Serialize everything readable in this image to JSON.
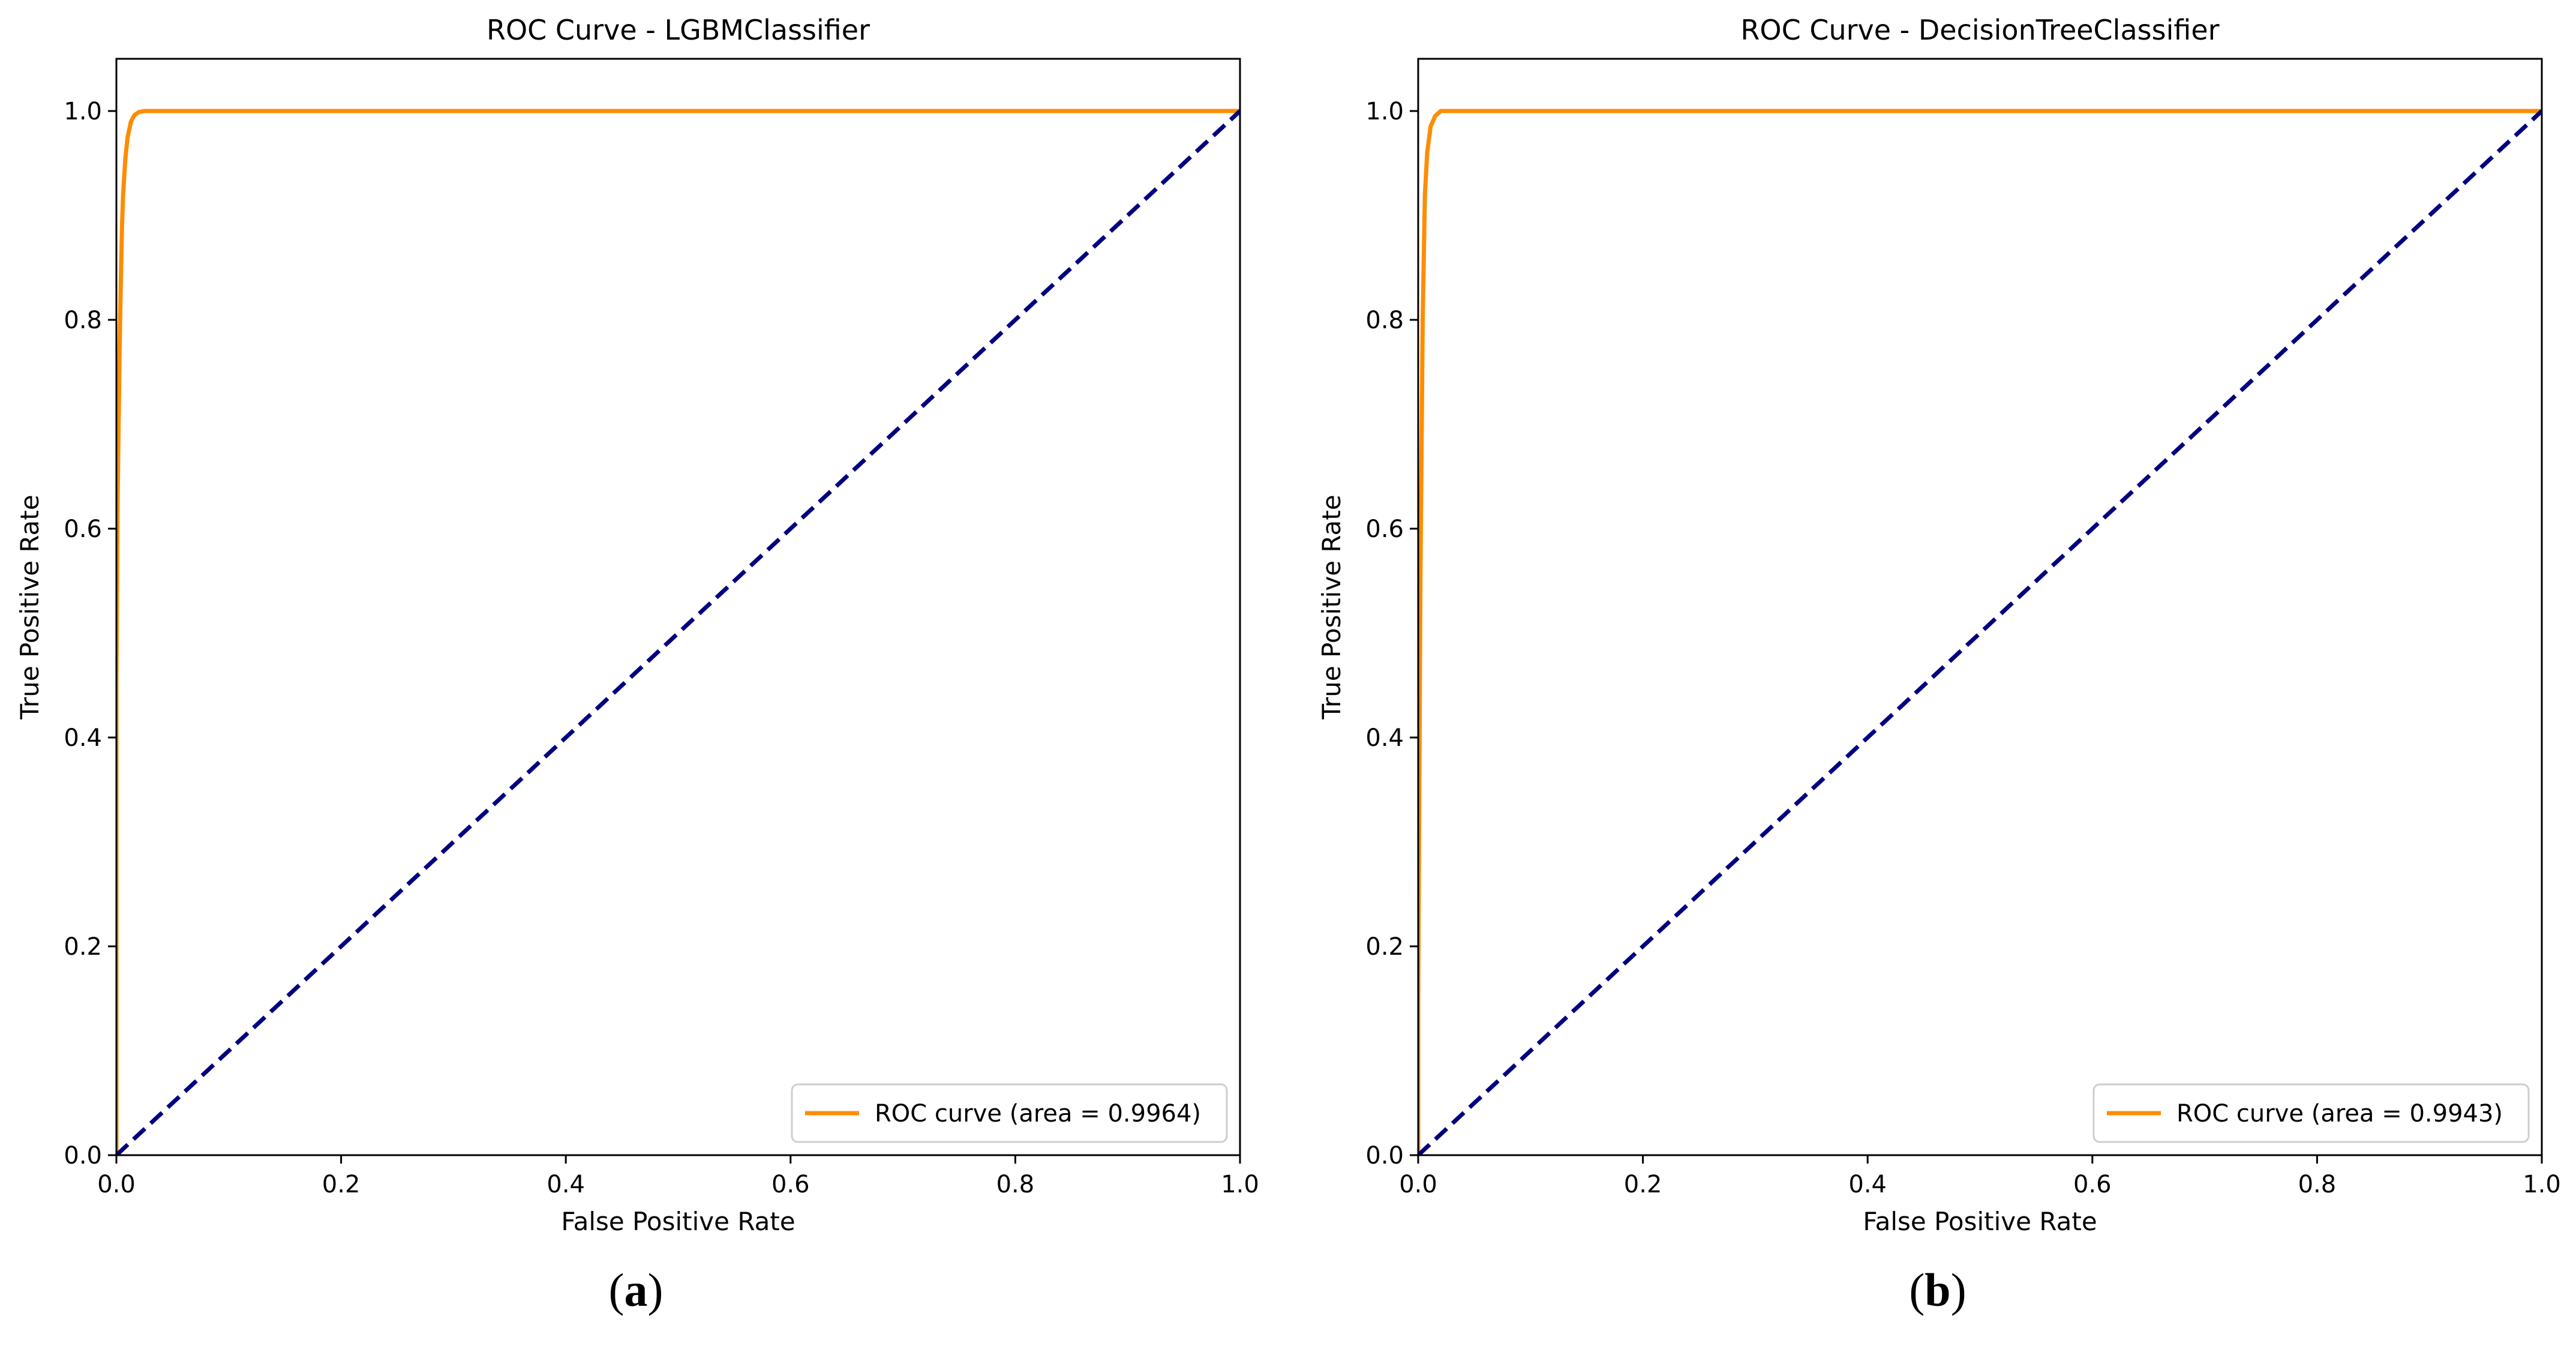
{
  "chart_data": [
    {
      "type": "line",
      "title": "ROC Curve - LGBMClassifier",
      "xlabel": "False Positive Rate",
      "ylabel": "True Positive Rate",
      "xlim": [
        0.0,
        1.0
      ],
      "ylim": [
        0.0,
        1.05
      ],
      "xticks": [
        "0.0",
        "0.2",
        "0.4",
        "0.6",
        "0.8",
        "1.0"
      ],
      "yticks": [
        "0.0",
        "0.2",
        "0.4",
        "0.6",
        "0.8",
        "1.0"
      ],
      "legend_position": "lower-right",
      "panel_label": "a",
      "series": [
        {
          "name": "ROC curve (area = 0.9964)",
          "color": "#ff8c00",
          "style": "solid",
          "x": [
            0.0,
            0.0,
            0.001,
            0.002,
            0.003,
            0.004,
            0.005,
            0.006,
            0.008,
            0.01,
            0.013,
            0.016,
            0.02,
            0.025,
            0.05,
            0.2,
            0.5,
            1.0
          ],
          "y": [
            0.0,
            0.45,
            0.62,
            0.7,
            0.78,
            0.84,
            0.89,
            0.92,
            0.955,
            0.975,
            0.99,
            0.996,
            0.999,
            1.0,
            1.0,
            1.0,
            1.0,
            1.0
          ]
        },
        {
          "name": "chance",
          "color": "#000080",
          "style": "dashed",
          "x": [
            0.0,
            1.0
          ],
          "y": [
            0.0,
            1.0
          ]
        }
      ]
    },
    {
      "type": "line",
      "title": "ROC Curve - DecisionTreeClassifier",
      "xlabel": "False Positive Rate",
      "ylabel": "True Positive Rate",
      "xlim": [
        0.0,
        1.0
      ],
      "ylim": [
        0.0,
        1.05
      ],
      "xticks": [
        "0.0",
        "0.2",
        "0.4",
        "0.6",
        "0.8",
        "1.0"
      ],
      "yticks": [
        "0.0",
        "0.2",
        "0.4",
        "0.6",
        "0.8",
        "1.0"
      ],
      "legend_position": "lower-right",
      "panel_label": "b",
      "series": [
        {
          "name": "ROC curve (area = 0.9943)",
          "color": "#ff8c00",
          "style": "solid",
          "x": [
            0.0,
            0.0,
            0.002,
            0.004,
            0.006,
            0.008,
            0.011,
            0.015,
            0.02,
            0.05,
            0.2,
            0.5,
            1.0
          ],
          "y": [
            0.0,
            0.15,
            0.55,
            0.8,
            0.92,
            0.96,
            0.985,
            0.995,
            1.0,
            1.0,
            1.0,
            1.0,
            1.0
          ]
        },
        {
          "name": "chance",
          "color": "#000080",
          "style": "dashed",
          "x": [
            0.0,
            1.0
          ],
          "y": [
            0.0,
            1.0
          ]
        }
      ]
    }
  ]
}
